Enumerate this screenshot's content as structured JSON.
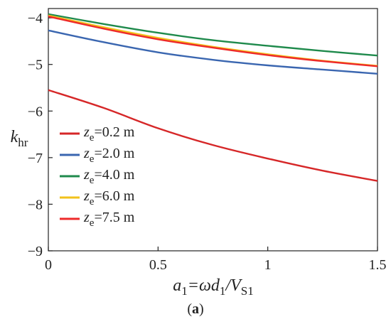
{
  "chart_data": {
    "type": "line",
    "xlabel": {
      "a": "a",
      "a_sub": "1",
      "eq": "=ωd",
      "d_sub": "1",
      "slash": "/V",
      "v_sub": "S1"
    },
    "ylabel": {
      "k": "k",
      "k_sub": "hr"
    },
    "xlim": [
      0,
      1.5
    ],
    "ylim": [
      -9,
      -3.8
    ],
    "xticks": [
      0,
      0.5,
      1,
      1.5
    ],
    "xtick_labels": [
      "0",
      "0.5",
      "1",
      "1.5"
    ],
    "yticks": [
      -9,
      -8,
      -7,
      -6,
      -5,
      -4
    ],
    "ytick_labels": [
      "−9",
      "−8",
      "−7",
      "−6",
      "−5",
      "−4"
    ],
    "grid": false,
    "legend_position": "bottom-left",
    "x": [
      0,
      0.25,
      0.5,
      0.75,
      1.0,
      1.25,
      1.5
    ],
    "series": [
      {
        "name_var": "z",
        "name_sub": "e",
        "name_rest": "=0.2 m",
        "color": "#d62728",
        "values": [
          -5.55,
          -5.93,
          -6.37,
          -6.73,
          -7.02,
          -7.28,
          -7.5
        ]
      },
      {
        "name_var": "z",
        "name_sub": "e",
        "name_rest": "=2.0 m",
        "color": "#3a66b0",
        "values": [
          -4.27,
          -4.52,
          -4.74,
          -4.9,
          -5.02,
          -5.11,
          -5.2
        ]
      },
      {
        "name_var": "z",
        "name_sub": "e",
        "name_rest": "=4.0 m",
        "color": "#1f8a4c",
        "values": [
          -3.92,
          -4.13,
          -4.32,
          -4.48,
          -4.6,
          -4.71,
          -4.81
        ]
      },
      {
        "name_var": "z",
        "name_sub": "e",
        "name_rest": "=6.0 m",
        "color": "#f2c21b",
        "values": [
          -3.95,
          -4.2,
          -4.43,
          -4.62,
          -4.78,
          -4.92,
          -5.03
        ]
      },
      {
        "name_var": "z",
        "name_sub": "e",
        "name_rest": "=7.5 m",
        "color": "#ee2a2a",
        "values": [
          -3.97,
          -4.23,
          -4.46,
          -4.64,
          -4.8,
          -4.93,
          -5.04
        ]
      }
    ]
  },
  "caption": {
    "open": "(",
    "letter": "a",
    "close": ")"
  }
}
